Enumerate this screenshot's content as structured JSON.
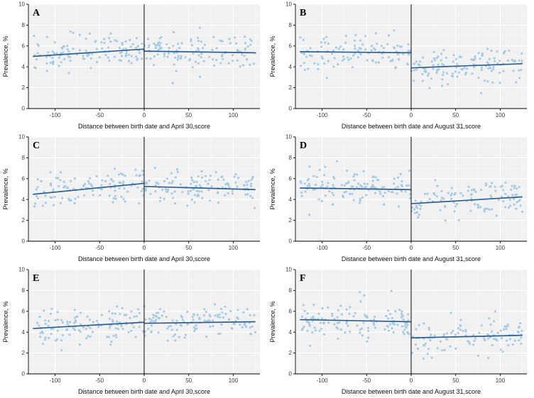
{
  "figure": {
    "background": "#ffffff",
    "panel_bg": "#f1f1f1",
    "grid_color": "#ffffff",
    "axis_color": "#000000",
    "tick_label_color": "#3c3c3c",
    "axis_title_color": "#111111",
    "point_color": "#a3c9e1",
    "fit_line_color": "#2f5f8f",
    "cutoff_line_color": "#1f1f1f",
    "panel_letter_color": "#000000"
  },
  "chart_data": [
    {
      "type": "scatter",
      "panel": "A",
      "title": "",
      "xlabel": "Distance between birth date and April 30,score",
      "ylabel": "Prevalence, %",
      "xlim": [
        -130,
        130
      ],
      "ylim": [
        0,
        10
      ],
      "xticks": [
        -100,
        -50,
        0,
        50,
        100
      ],
      "yticks": [
        0,
        2,
        4,
        6,
        8,
        10
      ],
      "cutoff_x": 0,
      "fit_left": {
        "x0": -125,
        "y0": 5.0,
        "x1": 0,
        "y1": 5.7
      },
      "fit_right": {
        "x0": 0,
        "y0": 5.5,
        "x1": 125,
        "y1": 5.35
      },
      "scatter": {
        "n": 240,
        "sd": 0.8,
        "seed": 11,
        "x_range": [
          -125,
          125
        ]
      },
      "legend": "none",
      "grid": "on"
    },
    {
      "type": "scatter",
      "panel": "B",
      "title": "",
      "xlabel": "Distance between birth date and August 31,score",
      "ylabel": "Prevalence, %",
      "xlim": [
        -130,
        130
      ],
      "ylim": [
        0,
        10
      ],
      "xticks": [
        -100,
        -50,
        0,
        50,
        100
      ],
      "yticks": [
        0,
        2,
        4,
        6,
        8,
        10
      ],
      "cutoff_x": 0,
      "fit_left": {
        "x0": -125,
        "y0": 5.45,
        "x1": 0,
        "y1": 5.35
      },
      "fit_right": {
        "x0": 0,
        "y0": 3.9,
        "x1": 125,
        "y1": 4.3
      },
      "scatter": {
        "n": 240,
        "sd": 0.8,
        "seed": 22,
        "x_range": [
          -125,
          125
        ]
      },
      "legend": "none",
      "grid": "on"
    },
    {
      "type": "scatter",
      "panel": "C",
      "title": "",
      "xlabel": "Distance between birth date and April 30,score",
      "ylabel": "Prevalence, %",
      "xlim": [
        -130,
        130
      ],
      "ylim": [
        0,
        10
      ],
      "xticks": [
        -100,
        -50,
        0,
        50,
        100
      ],
      "yticks": [
        0,
        2,
        4,
        6,
        8,
        10
      ],
      "cutoff_x": 0,
      "fit_left": {
        "x0": -125,
        "y0": 4.5,
        "x1": 0,
        "y1": 5.55
      },
      "fit_right": {
        "x0": 0,
        "y0": 5.25,
        "x1": 125,
        "y1": 4.95
      },
      "scatter": {
        "n": 240,
        "sd": 0.8,
        "seed": 33,
        "x_range": [
          -125,
          125
        ]
      },
      "legend": "none",
      "grid": "on"
    },
    {
      "type": "scatter",
      "panel": "D",
      "title": "",
      "xlabel": "Distance between birth date and August 31,score",
      "ylabel": "Prevalence, %",
      "xlim": [
        -130,
        130
      ],
      "ylim": [
        0,
        10
      ],
      "xticks": [
        -100,
        -50,
        0,
        50,
        100
      ],
      "yticks": [
        0,
        2,
        4,
        6,
        8,
        10
      ],
      "cutoff_x": 0,
      "fit_left": {
        "x0": -125,
        "y0": 5.1,
        "x1": 0,
        "y1": 4.95
      },
      "fit_right": {
        "x0": 0,
        "y0": 3.6,
        "x1": 125,
        "y1": 4.25
      },
      "scatter": {
        "n": 240,
        "sd": 0.8,
        "seed": 44,
        "x_range": [
          -125,
          125
        ]
      },
      "legend": "none",
      "grid": "on"
    },
    {
      "type": "scatter",
      "panel": "E",
      "title": "",
      "xlabel": "Distance between birth date and April 30,score",
      "ylabel": "Prevalence, %",
      "xlim": [
        -130,
        130
      ],
      "ylim": [
        0,
        10
      ],
      "xticks": [
        -100,
        -50,
        0,
        50,
        100
      ],
      "yticks": [
        0,
        2,
        4,
        6,
        8,
        10
      ],
      "cutoff_x": 0,
      "fit_left": {
        "x0": -125,
        "y0": 4.35,
        "x1": 0,
        "y1": 4.95
      },
      "fit_right": {
        "x0": 0,
        "y0": 4.85,
        "x1": 125,
        "y1": 5.0
      },
      "scatter": {
        "n": 240,
        "sd": 0.8,
        "seed": 55,
        "x_range": [
          -125,
          125
        ]
      },
      "legend": "none",
      "grid": "on"
    },
    {
      "type": "scatter",
      "panel": "F",
      "title": "",
      "xlabel": "Distance between birth date and August 31,score",
      "ylabel": "Prevalence, %",
      "xlim": [
        -130,
        130
      ],
      "ylim": [
        0,
        10
      ],
      "xticks": [
        -100,
        -50,
        0,
        50,
        100
      ],
      "yticks": [
        0,
        2,
        4,
        6,
        8,
        10
      ],
      "cutoff_x": 0,
      "fit_left": {
        "x0": -125,
        "y0": 5.2,
        "x1": 0,
        "y1": 5.0
      },
      "fit_right": {
        "x0": 0,
        "y0": 3.45,
        "x1": 125,
        "y1": 3.7
      },
      "scatter": {
        "n": 240,
        "sd": 0.8,
        "seed": 66,
        "x_range": [
          -125,
          125
        ]
      },
      "legend": "none",
      "grid": "on"
    }
  ]
}
